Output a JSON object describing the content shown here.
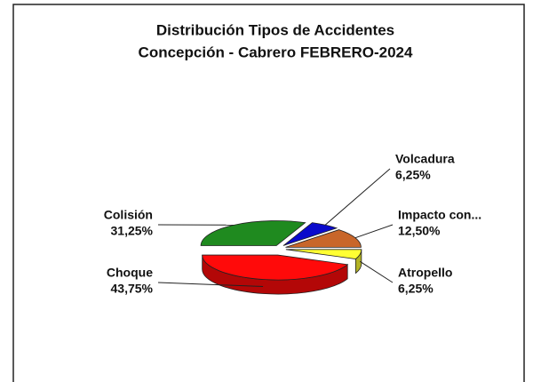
{
  "chart_data": {
    "type": "pie",
    "title": "Distribución Tipos de Accidentes",
    "subtitle": "Concepción - Cabrero FEBRERO-2024",
    "categories": [
      "Colisión",
      "Volcadura",
      "Impacto  con...",
      "Atropello",
      "Choque"
    ],
    "values": [
      31.25,
      6.25,
      12.5,
      6.25,
      43.75
    ],
    "value_labels": [
      "31,25%",
      "6,25%",
      "12,50%",
      "6,25%",
      "43,75%"
    ],
    "colors": [
      "#1f8a1f",
      "#0a0acc",
      "#c8662a",
      "#ffff33",
      "#ff0a0a"
    ]
  }
}
